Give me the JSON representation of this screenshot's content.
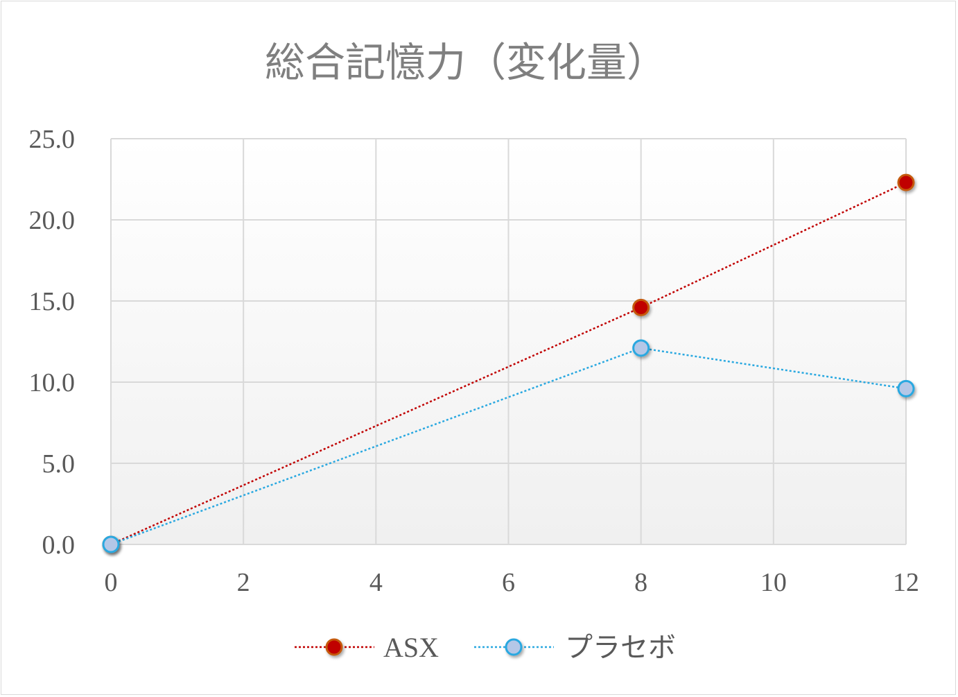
{
  "chart_data": {
    "type": "line",
    "title": "総合記憶力（変化量）",
    "xlabel": "",
    "ylabel": "",
    "xlim": [
      0,
      12
    ],
    "ylim": [
      0,
      25
    ],
    "x_ticks": [
      "0",
      "2",
      "4",
      "6",
      "8",
      "10",
      "12"
    ],
    "y_ticks": [
      "0.0",
      "5.0",
      "10.0",
      "15.0",
      "20.0",
      "25.0"
    ],
    "grid": true,
    "legend_position": "bottom",
    "series": [
      {
        "name": "ASX",
        "color": "#c00000",
        "line_style": "dotted",
        "points": [
          {
            "x": 0,
            "y": 0.0
          },
          {
            "x": 8,
            "y": 14.6
          },
          {
            "x": 12,
            "y": 22.3
          }
        ]
      },
      {
        "name": "プラセボ",
        "color": "#29a8e0",
        "marker_fill": "#b4c7e7",
        "line_style": "dotted",
        "points": [
          {
            "x": 0,
            "y": 0.0
          },
          {
            "x": 8,
            "y": 12.1
          },
          {
            "x": 12,
            "y": 9.6
          }
        ]
      }
    ]
  }
}
